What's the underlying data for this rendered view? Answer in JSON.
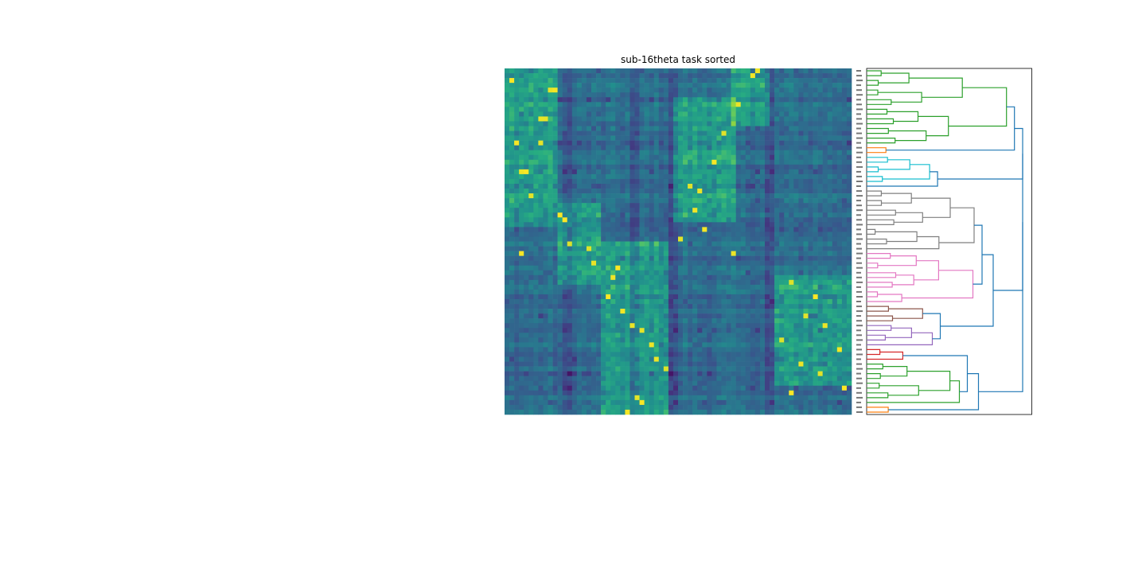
{
  "chart_data": [
    {
      "type": "heatmap",
      "title": "sub-16theta task sorted",
      "rows": 72,
      "cols": 72,
      "colormap": "viridis",
      "value_range": [
        0,
        1
      ],
      "xlabel": "",
      "ylabel": "",
      "grid": false,
      "bands": [
        {
          "col_range": [
            0,
            11
          ],
          "row_range": [
            0,
            33
          ]
        },
        {
          "col_range": [
            11,
            20
          ],
          "row_range": [
            28,
            45
          ]
        },
        {
          "col_range": [
            20,
            34
          ],
          "row_range": [
            36,
            72
          ]
        },
        {
          "col_range": [
            35,
            48
          ],
          "row_range": [
            6,
            32
          ]
        },
        {
          "col_range": [
            47,
            55
          ],
          "row_range": [
            0,
            12
          ]
        },
        {
          "col_range": [
            56,
            72
          ],
          "row_range": [
            43,
            66
          ]
        }
      ],
      "dark_columns": [
        12,
        13,
        26,
        27,
        34,
        35,
        54,
        55
      ],
      "hot_spots": [
        [
          2,
          1
        ],
        [
          4,
          9
        ],
        [
          4,
          10
        ],
        [
          10,
          7
        ],
        [
          10,
          8
        ],
        [
          15,
          2
        ],
        [
          15,
          7
        ],
        [
          21,
          3
        ],
        [
          21,
          4
        ],
        [
          26,
          5
        ],
        [
          30,
          11
        ],
        [
          31,
          12
        ],
        [
          36,
          13
        ],
        [
          38,
          3
        ],
        [
          37,
          17
        ],
        [
          40,
          18
        ],
        [
          41,
          23
        ],
        [
          43,
          22
        ],
        [
          47,
          21
        ],
        [
          50,
          24
        ],
        [
          53,
          26
        ],
        [
          54,
          28
        ],
        [
          57,
          30
        ],
        [
          60,
          31
        ],
        [
          62,
          33
        ],
        [
          68,
          27
        ],
        [
          69,
          28
        ],
        [
          71,
          25
        ],
        [
          0,
          52
        ],
        [
          1,
          51
        ],
        [
          7,
          48
        ],
        [
          13,
          45
        ],
        [
          19,
          43
        ],
        [
          24,
          38
        ],
        [
          25,
          40
        ],
        [
          29,
          39
        ],
        [
          33,
          41
        ],
        [
          35,
          36
        ],
        [
          38,
          47
        ],
        [
          44,
          59
        ],
        [
          47,
          64
        ],
        [
          51,
          62
        ],
        [
          53,
          66
        ],
        [
          56,
          57
        ],
        [
          58,
          69
        ],
        [
          61,
          61
        ],
        [
          63,
          65
        ],
        [
          66,
          70
        ],
        [
          67,
          59
        ]
      ]
    },
    {
      "type": "dendrogram",
      "orientation": "left",
      "leaves": 72,
      "cluster_colors": [
        "#2ca02c",
        "#ff7f0e",
        "#17becf",
        "#bcbd22",
        "#7f7f7f",
        "#e377c2",
        "#8c564b",
        "#9467bd",
        "#d62728",
        "#2ca02c",
        "#ff7f0e"
      ],
      "link_color": "#1f77b4",
      "clusters": [
        {
          "color": "#2ca02c",
          "leaves": [
            0,
            16
          ]
        },
        {
          "color": "#ff7f0e",
          "leaves": [
            16,
            18
          ]
        },
        {
          "color": "#17becf",
          "leaves": [
            18,
            24
          ]
        },
        {
          "color": "#bcbd22",
          "leaves": [
            24,
            25
          ]
        },
        {
          "color": "#7f7f7f",
          "leaves": [
            25,
            38
          ]
        },
        {
          "color": "#e377c2",
          "leaves": [
            38,
            49
          ]
        },
        {
          "color": "#8c564b",
          "leaves": [
            49,
            53
          ]
        },
        {
          "color": "#9467bd",
          "leaves": [
            53,
            58
          ]
        },
        {
          "color": "#d62728",
          "leaves": [
            58,
            61
          ]
        },
        {
          "color": "#2ca02c",
          "leaves": [
            61,
            70
          ]
        },
        {
          "color": "#ff7f0e",
          "leaves": [
            70,
            72
          ]
        }
      ]
    }
  ]
}
